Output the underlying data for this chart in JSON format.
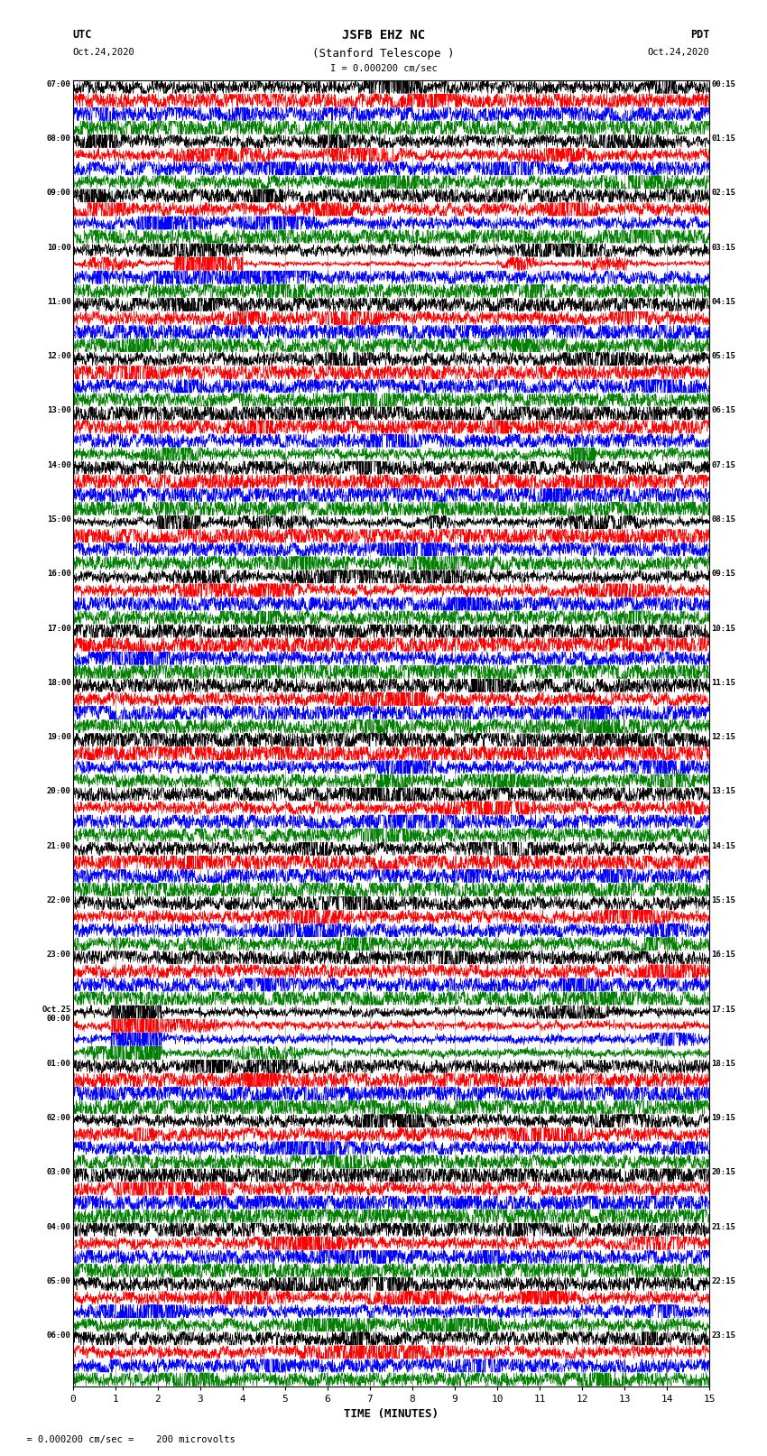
{
  "title_line1": "JSFB EHZ NC",
  "title_line2": "(Stanford Telescope )",
  "scale_label": "I = 0.000200 cm/sec",
  "bottom_label": "  = 0.000200 cm/sec =    200 microvolts",
  "xlabel": "TIME (MINUTES)",
  "xmin": 0,
  "xmax": 15,
  "background_color": "#ffffff",
  "trace_colors": [
    "black",
    "red",
    "blue",
    "green"
  ],
  "utc_labels": [
    "07:00",
    "08:00",
    "09:00",
    "10:00",
    "11:00",
    "12:00",
    "13:00",
    "14:00",
    "15:00",
    "16:00",
    "17:00",
    "18:00",
    "19:00",
    "20:00",
    "21:00",
    "22:00",
    "23:00",
    "Oct.25\n00:00",
    "01:00",
    "02:00",
    "03:00",
    "04:00",
    "05:00",
    "06:00"
  ],
  "pdt_labels": [
    "00:15",
    "01:15",
    "02:15",
    "03:15",
    "04:15",
    "05:15",
    "06:15",
    "07:15",
    "08:15",
    "09:15",
    "10:15",
    "11:15",
    "12:15",
    "13:15",
    "14:15",
    "15:15",
    "16:15",
    "17:15",
    "18:15",
    "19:15",
    "20:15",
    "21:15",
    "22:15",
    "23:15"
  ],
  "figure_width": 8.5,
  "figure_height": 16.13,
  "dpi": 100
}
